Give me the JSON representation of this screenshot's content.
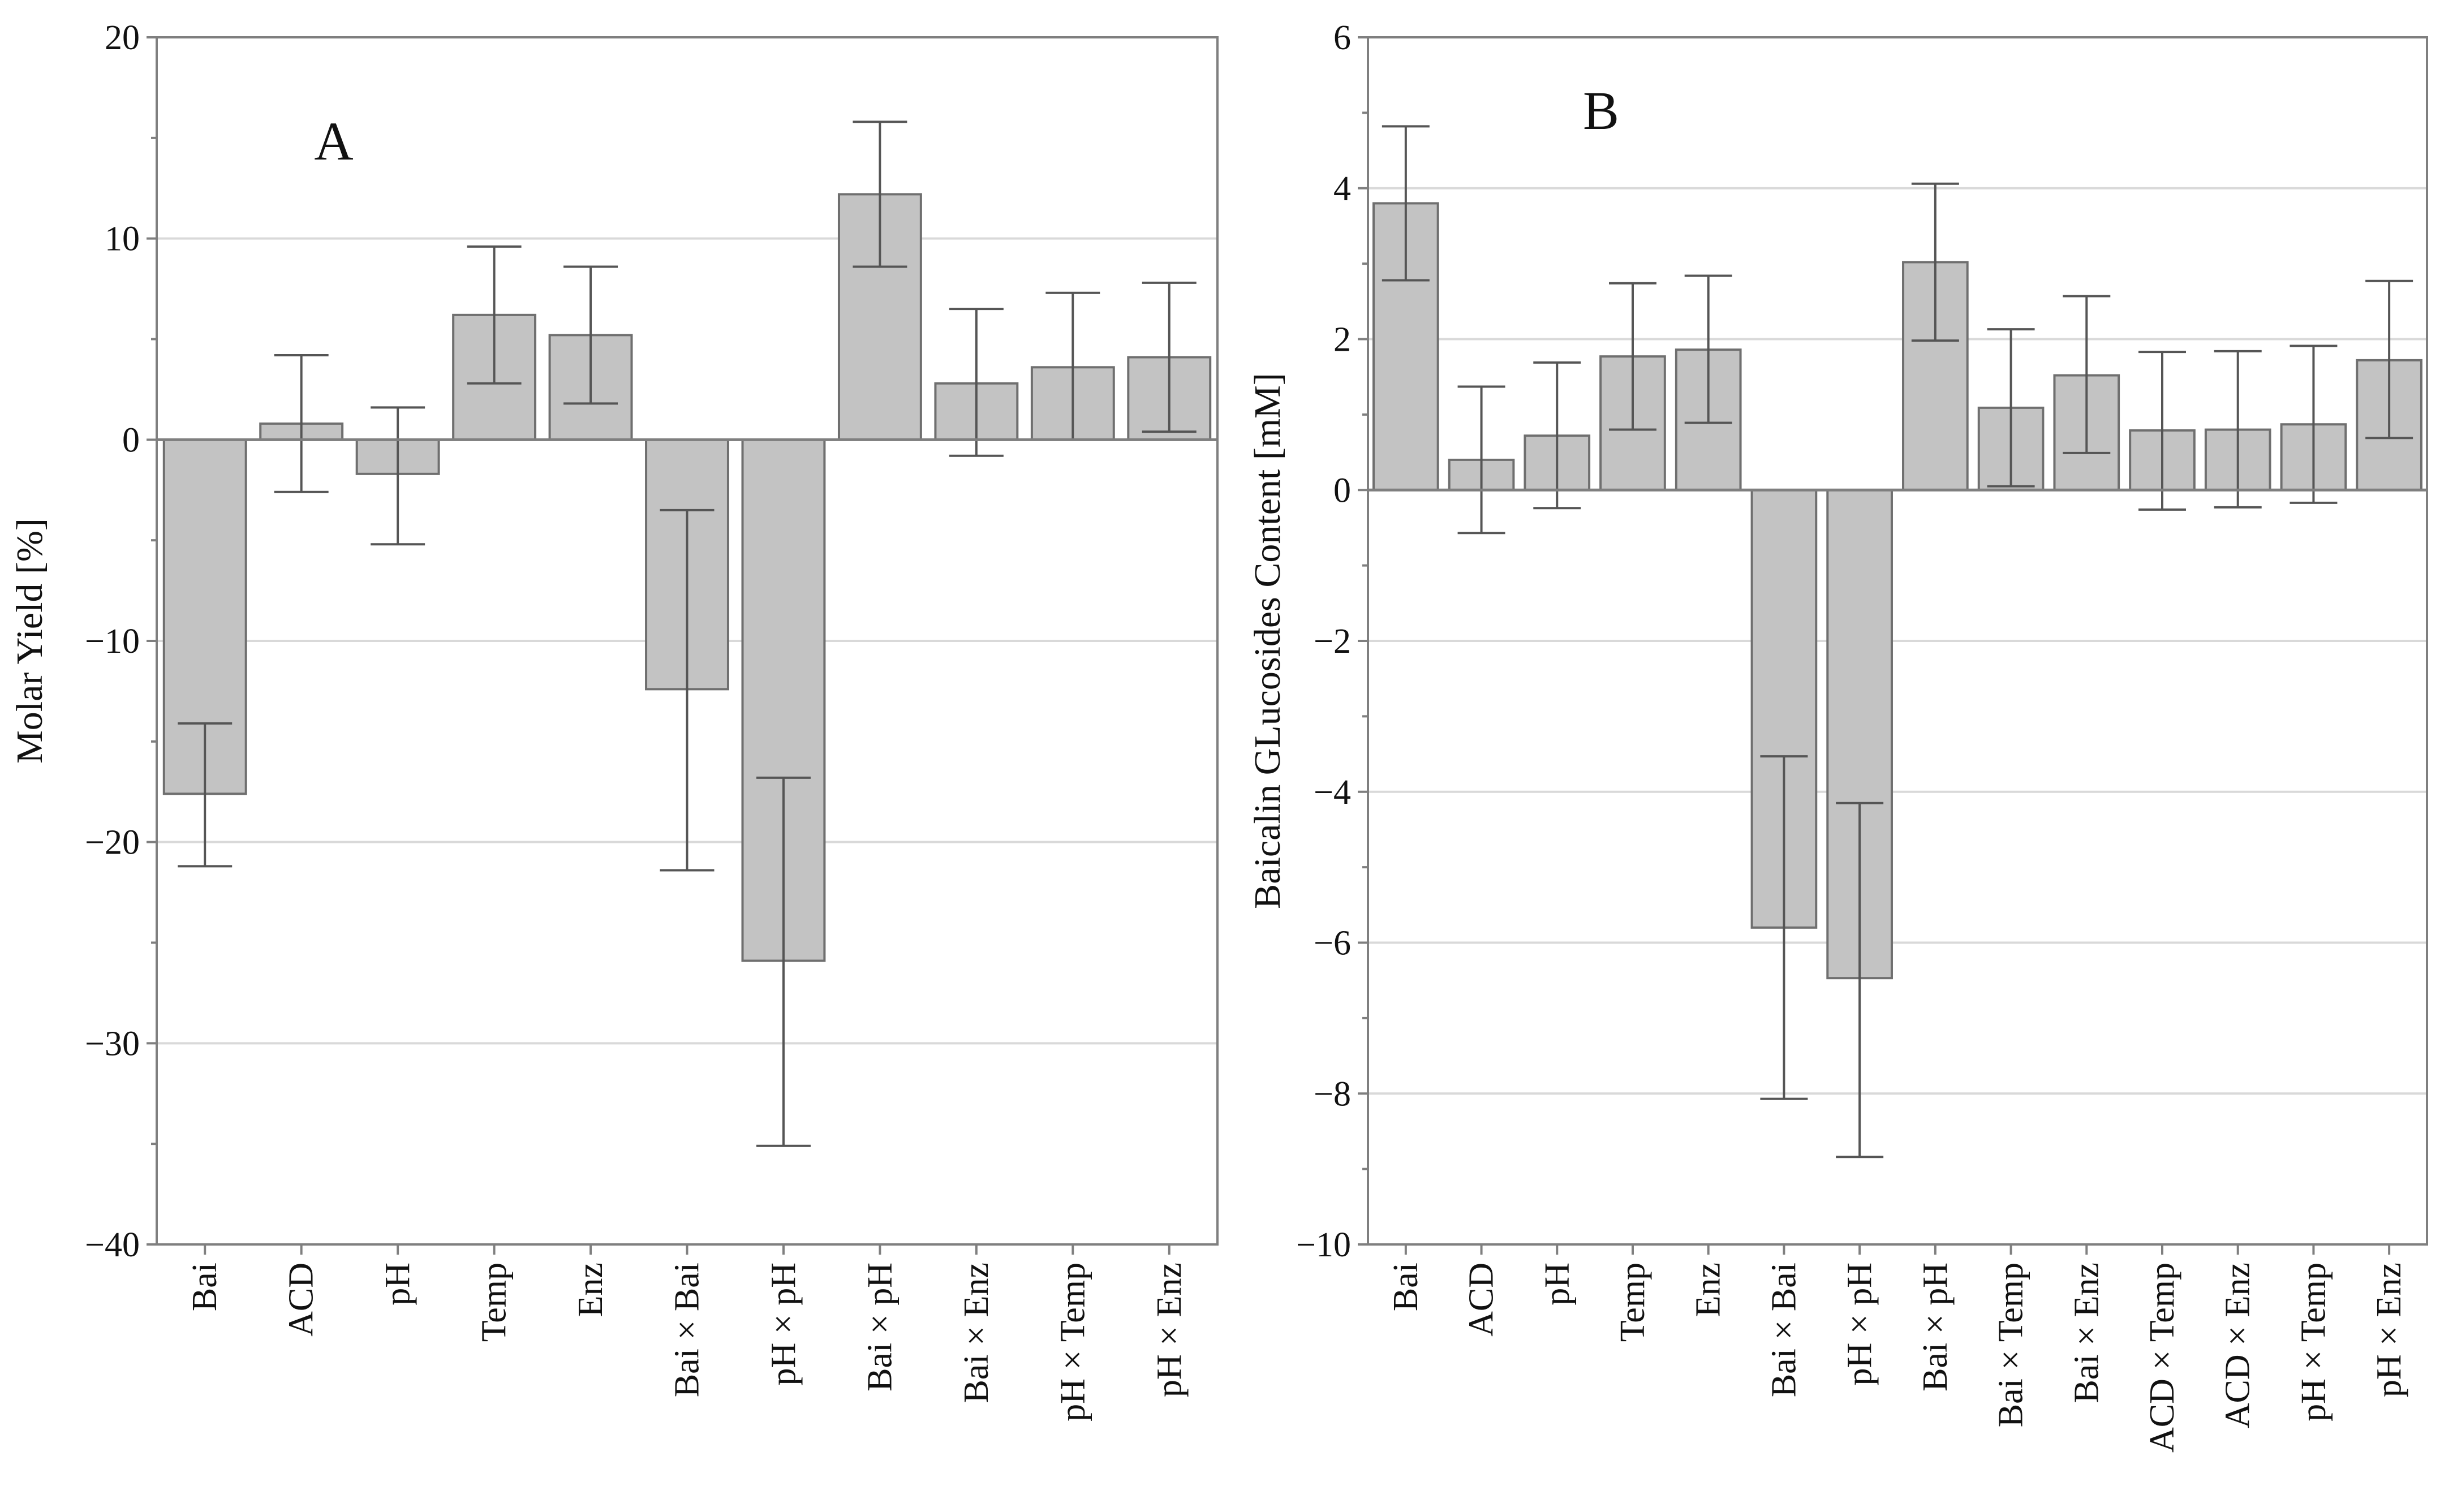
{
  "chart_data": [
    {
      "type": "bar",
      "panel_label": "A",
      "title": "",
      "xlabel": "",
      "ylabel": "Molar Yield [%]",
      "ylim": [
        -40,
        20
      ],
      "yticks": [
        -40,
        -30,
        -20,
        -10,
        0,
        10,
        20
      ],
      "ytick_labels": [
        "−40",
        "−30",
        "−20",
        "−10",
        "0",
        "10",
        "20"
      ],
      "grid": true,
      "categories": [
        "Bai",
        "ACD",
        "pH",
        "Temp",
        "Enz",
        "Bai × Bai",
        "pH × pH",
        "Bai × pH",
        "Bai × Enz",
        "pH × Temp",
        "pH × Enz"
      ],
      "values": [
        -17.6,
        0.8,
        -1.7,
        6.2,
        5.2,
        -12.4,
        -25.9,
        12.2,
        2.8,
        3.6,
        4.1
      ],
      "error_low": [
        -21.2,
        -2.6,
        -5.2,
        2.8,
        1.8,
        -21.4,
        -35.1,
        8.6,
        -0.8,
        0.0,
        0.4
      ],
      "error_high": [
        -14.1,
        4.2,
        1.6,
        9.6,
        8.6,
        -3.5,
        -16.8,
        15.8,
        6.5,
        7.3,
        7.8
      ]
    },
    {
      "type": "bar",
      "panel_label": "B",
      "title": "",
      "xlabel": "",
      "ylabel": "Baicalin GLucosides Content [mM]",
      "ylim": [
        -10,
        6
      ],
      "yticks": [
        -10,
        -8,
        -6,
        -4,
        -2,
        0,
        2,
        4,
        6
      ],
      "ytick_labels": [
        "−10",
        "−8",
        "−6",
        "−4",
        "−2",
        "0",
        "2",
        "4",
        "6"
      ],
      "grid": true,
      "categories": [
        "Bai",
        "ACD",
        "pH",
        "Temp",
        "Enz",
        "Bai × Bai",
        "pH × pH",
        "Bai × pH",
        "Bai × Temp",
        "Bai × Enz",
        "ACD × Temp",
        "ACD × Enz",
        "pH × Temp",
        "pH × Enz"
      ],
      "values": [
        3.8,
        0.4,
        0.72,
        1.77,
        1.86,
        -5.8,
        -6.47,
        3.02,
        1.09,
        1.52,
        0.79,
        0.8,
        0.87,
        1.72
      ],
      "error_low": [
        2.78,
        -0.57,
        -0.24,
        0.8,
        0.89,
        -8.07,
        -8.84,
        1.98,
        0.05,
        0.49,
        -0.26,
        -0.23,
        -0.17,
        0.69
      ],
      "error_high": [
        4.82,
        1.37,
        1.69,
        2.74,
        2.84,
        -3.53,
        -4.15,
        4.06,
        2.13,
        2.57,
        1.83,
        1.84,
        1.91,
        2.77
      ]
    }
  ]
}
